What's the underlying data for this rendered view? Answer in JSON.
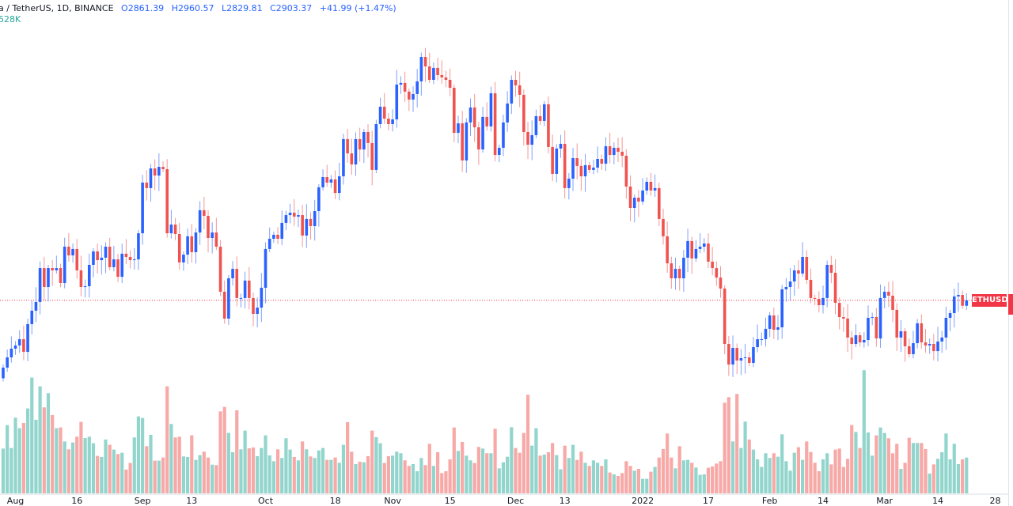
{
  "legend": {
    "symbol": "a / TetherUS, 1D, BINANCE",
    "open": "O2861.39",
    "high": "H2960.57",
    "low": "L2829.81",
    "close": "C2903.37",
    "change": "+41.99 (+1.47%)",
    "volume": "528K"
  },
  "price_label": "ETHUSDT",
  "colors": {
    "up": "#2962ff",
    "down": "#ef5350",
    "vol_up": "#92d5cc",
    "vol_down": "#f7a9a7",
    "last_price": "#f23645"
  },
  "chart_data": {
    "type": "candlestick",
    "interval": "1D",
    "x_start": "2021-07-29",
    "ylim": [
      1420,
      5251
    ],
    "last_price": 2903.37,
    "last_candle": {
      "open": 2861.39,
      "high": 2960.57,
      "low": 2829.81,
      "close": 2903.37
    },
    "close": [
      2378,
      2458,
      2526,
      2551,
      2600,
      2501,
      2718,
      2823,
      2891,
      3156,
      3008,
      3156,
      3138,
      3156,
      3039,
      3323,
      3255,
      3305,
      3138,
      3008,
      3014,
      3181,
      3286,
      3218,
      3237,
      3323,
      3163,
      3224,
      3088,
      3268,
      3243,
      3218,
      3224,
      3428,
      3824,
      3781,
      3935,
      3879,
      3947,
      3929,
      3428,
      3496,
      3422,
      3200,
      3261,
      3404,
      3280,
      3434,
      3608,
      3564,
      3391,
      3434,
      3323,
      2971,
      2761,
      3076,
      3150,
      2922,
      2922,
      3058,
      2922,
      2798,
      2847,
      3002,
      3305,
      3385,
      3416,
      3385,
      3509,
      3570,
      3589,
      3558,
      3570,
      3410,
      3540,
      3484,
      3601,
      3787,
      3867,
      3824,
      3849,
      3743,
      3873,
      4164,
      4052,
      3966,
      4164,
      4083,
      4219,
      4133,
      3923,
      4281,
      4417,
      4324,
      4281,
      4318,
      4590,
      4603,
      4535,
      4473,
      4516,
      4615,
      4806,
      4732,
      4627,
      4720,
      4664,
      4646,
      4627,
      4565,
      4213,
      4287,
      3997,
      4294,
      4411,
      4256,
      4083,
      4337,
      4263,
      4522,
      4040,
      4096,
      4294,
      4442,
      4627,
      4584,
      4510,
      4219,
      4120,
      4195,
      4343,
      4306,
      4436,
      4102,
      3892,
      4090,
      4127,
      3781,
      3855,
      4015,
      3954,
      3873,
      3960,
      3923,
      3941,
      4009,
      3972,
      4108,
      4040,
      4096,
      4065,
      4034,
      3793,
      3626,
      3706,
      3676,
      3762,
      3830,
      3762,
      3781,
      3540,
      3404,
      3193,
      3076,
      3150,
      3076,
      3237,
      3367,
      3231,
      3305,
      3323,
      3348,
      3206,
      3156,
      3082,
      2996,
      2563,
      2402,
      2532,
      2433,
      2452,
      2458,
      2415,
      2538,
      2600,
      2600,
      2681,
      2786,
      2674,
      2693,
      2990,
      3008,
      3051,
      3138,
      3113,
      3243,
      3064,
      2922,
      2915,
      2866,
      2922,
      3181,
      3119,
      2884,
      2773,
      2761,
      2613,
      2563,
      2631,
      2575,
      2594,
      2767,
      2773,
      2606,
      2922,
      2971,
      2940,
      2829,
      2613,
      2662,
      2545,
      2483,
      2569,
      2724,
      2575,
      2551,
      2563,
      2507,
      2582,
      2613,
      2767,
      2804,
      2934,
      2946,
      2861.39,
      2903.37
    ],
    "volume_k": [
      660,
      1006,
      668,
      1115,
      960,
      1037,
      1251,
      1706,
      1084,
      1577,
      1267,
      1476,
      1154,
      960,
      971,
      765,
      649,
      750,
      835,
      1053,
      816,
      835,
      738,
      552,
      536,
      793,
      715,
      645,
      579,
      598,
      350,
      447,
      824,
      1134,
      1111,
      695,
      862,
      482,
      482,
      528,
      1577,
      1022,
      824,
      835,
      544,
      536,
      855,
      493,
      563,
      614,
      528,
      423,
      416,
      1208,
      1274,
      890,
      606,
      1224,
      649,
      925,
      664,
      676,
      548,
      668,
      855,
      559,
      474,
      649,
      521,
      812,
      645,
      536,
      486,
      765,
      649,
      544,
      521,
      633,
      668,
      493,
      493,
      528,
      451,
      715,
      1049,
      614,
      431,
      466,
      458,
      548,
      925,
      828,
      738,
      447,
      548,
      556,
      614,
      591,
      486,
      404,
      431,
      326,
      521,
      416,
      730,
      404,
      606,
      299,
      326,
      501,
      971,
      625,
      758,
      556,
      486,
      447,
      684,
      660,
      591,
      591,
      952,
      369,
      458,
      540,
      975,
      668,
      598,
      890,
      1453,
      703,
      960,
      556,
      571,
      606,
      742,
      563,
      354,
      703,
      521,
      715,
      493,
      614,
      451,
      404,
      486,
      451,
      404,
      501,
      307,
      280,
      256,
      299,
      474,
      404,
      334,
      361,
      214,
      214,
      319,
      389,
      528,
      653,
      882,
      528,
      369,
      695,
      486,
      493,
      451,
      381,
      272,
      280,
      377,
      396,
      439,
      474,
      1336,
      1418,
      765,
      1465,
      668,
      1057,
      793,
      645,
      501,
      389,
      591,
      521,
      591,
      540,
      870,
      474,
      334,
      598,
      680,
      493,
      765,
      610,
      451,
      326,
      501,
      591,
      427,
      645,
      660,
      389,
      509,
      1006,
      905,
      668,
      1815,
      897,
      556,
      855,
      971,
      890,
      812,
      591,
      730,
      361,
      451,
      820,
      742,
      742,
      742,
      653,
      291,
      427,
      509,
      606,
      882,
      501,
      730,
      431,
      501,
      528
    ],
    "x_ticks": [
      {
        "label": "Aug",
        "date": "2021-08-01"
      },
      {
        "label": "16",
        "date": "2021-08-16"
      },
      {
        "label": "Sep",
        "date": "2021-09-01"
      },
      {
        "label": "13",
        "date": "2021-09-13"
      },
      {
        "label": "Oct",
        "date": "2021-10-01"
      },
      {
        "label": "18",
        "date": "2021-10-18"
      },
      {
        "label": "Nov",
        "date": "2021-11-01"
      },
      {
        "label": "15",
        "date": "2021-11-15"
      },
      {
        "label": "Dec",
        "date": "2021-12-01"
      },
      {
        "label": "13",
        "date": "2021-12-13"
      },
      {
        "label": "2022",
        "date": "2022-01-01"
      },
      {
        "label": "17",
        "date": "2022-01-17"
      },
      {
        "label": "Feb",
        "date": "2022-02-01"
      },
      {
        "label": "14",
        "date": "2022-02-14"
      },
      {
        "label": "Mar",
        "date": "2022-03-01"
      },
      {
        "label": "14",
        "date": "2022-03-14"
      },
      {
        "label": "28",
        "date": "2022-03-28"
      }
    ]
  }
}
